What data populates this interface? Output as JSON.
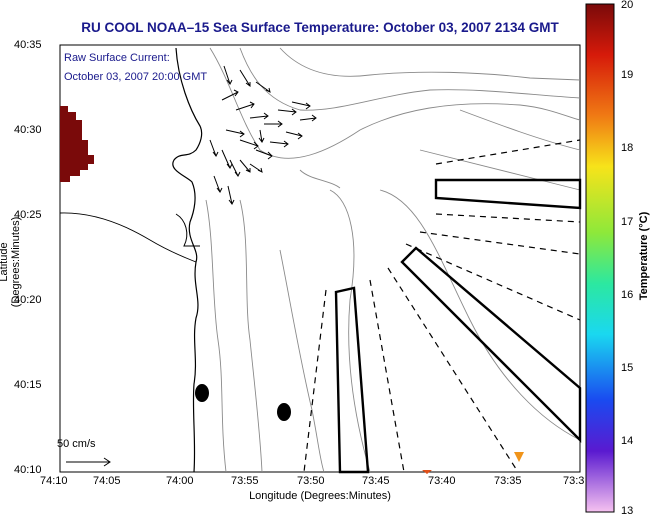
{
  "title": "RU COOL  NOAA–15  Sea Surface Temperature:  October 03, 2007 2134 GMT",
  "overlay": {
    "line1": "Raw Surface Current:",
    "line2": "October 03, 2007 20:00 GMT"
  },
  "axes": {
    "xlabel": "Longitude (Degrees:Minutes)",
    "ylabel": "Latitude (Degrees:Minutes)",
    "xticks": [
      "74:10",
      "74:05",
      "74:00",
      "73:55",
      "73:50",
      "73:45",
      "73:40",
      "73:35",
      "73:3"
    ],
    "yticks": [
      "40:35",
      "40:30",
      "40:25",
      "40:20",
      "40:15",
      "40:10"
    ]
  },
  "colorbar": {
    "label": "Temperature (°C)",
    "ticks": [
      "20",
      "19",
      "18",
      "17",
      "16",
      "15",
      "14",
      "13"
    ],
    "min": 13,
    "max": 20
  },
  "scale_bar": {
    "label": "50 cm/s"
  }
}
